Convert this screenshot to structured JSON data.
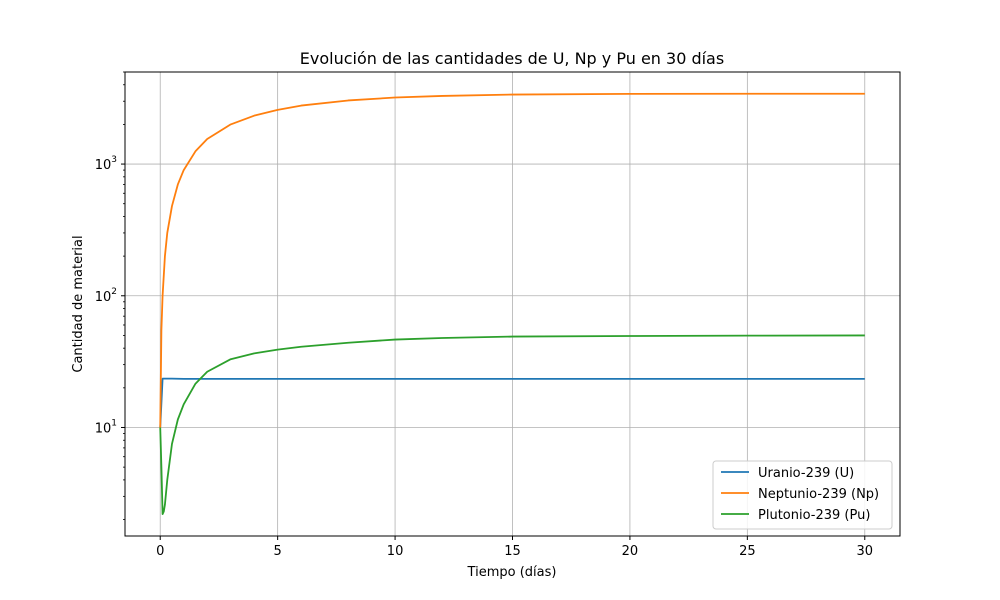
{
  "chart_data": {
    "type": "line",
    "title": "Evolución de las cantidades de U, Np y Pu en 30 días",
    "xlabel": "Tiempo (días)",
    "ylabel": "Cantidad de material",
    "xlim": [
      -1.5,
      31.5
    ],
    "ylim": [
      1.5,
      5000
    ],
    "yscale": "log",
    "grid": true,
    "legend_position": "lower-right",
    "x_ticks": [
      0,
      5,
      10,
      15,
      20,
      25,
      30
    ],
    "x_tick_labels": [
      "0",
      "5",
      "10",
      "15",
      "20",
      "25",
      "30"
    ],
    "y_ticks": [
      10,
      100,
      1000
    ],
    "y_tick_labels": [
      {
        "base": "10",
        "exp": "1"
      },
      {
        "base": "10",
        "exp": "2"
      },
      {
        "base": "10",
        "exp": "3"
      }
    ],
    "series": [
      {
        "name": "Uranio-239 (U)",
        "color": "#1f77b4",
        "x": [
          0,
          0.1,
          0.2,
          0.5,
          1,
          2,
          5,
          10,
          15,
          20,
          25,
          30
        ],
        "y": [
          10,
          23.5,
          23.5,
          23.5,
          23.4,
          23.4,
          23.4,
          23.4,
          23.4,
          23.4,
          23.4,
          23.4
        ]
      },
      {
        "name": "Neptunio-239 (Np)",
        "color": "#ff7f0e",
        "x": [
          0,
          0.05,
          0.1,
          0.2,
          0.3,
          0.5,
          0.75,
          1,
          1.5,
          2,
          3,
          4,
          5,
          6,
          8,
          10,
          12,
          15,
          20,
          25,
          30
        ],
        "y": [
          10,
          55,
          100,
          200,
          300,
          480,
          700,
          900,
          1250,
          1550,
          2000,
          2330,
          2580,
          2780,
          3040,
          3200,
          3290,
          3370,
          3410,
          3420,
          3420
        ]
      },
      {
        "name": "Plutonio-239 (Pu)",
        "color": "#2ca02c",
        "x": [
          0,
          0.05,
          0.1,
          0.15,
          0.2,
          0.3,
          0.5,
          0.75,
          1,
          1.5,
          2,
          3,
          4,
          5,
          6,
          8,
          10,
          12,
          15,
          20,
          25,
          30
        ],
        "y": [
          10,
          5,
          2.2,
          2.3,
          2.6,
          4,
          7.5,
          11.5,
          15,
          21.5,
          26.5,
          33,
          36.5,
          39,
          41,
          44,
          46.5,
          47.8,
          49,
          49.5,
          49.8,
          50
        ]
      }
    ]
  }
}
